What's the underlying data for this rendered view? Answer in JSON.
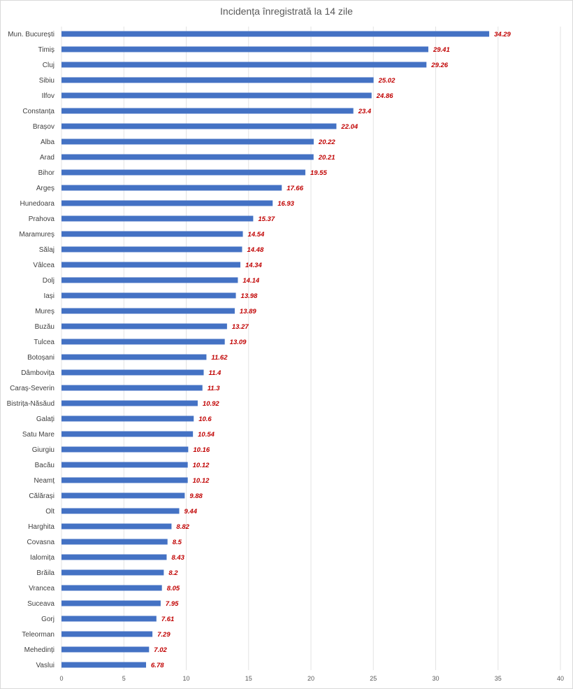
{
  "chart_data": {
    "type": "bar",
    "orientation": "horizontal",
    "title": "Incidența înregistrată la 14 zile",
    "xlim": [
      0,
      40
    ],
    "xticks": [
      0,
      5,
      10,
      15,
      20,
      25,
      30,
      35,
      40
    ],
    "grid": true,
    "bar_color": "#4472c4",
    "label_color": "#c00000",
    "categories": [
      "Mun. București",
      "Timiș",
      "Cluj",
      "Sibiu",
      "Ilfov",
      "Constanța",
      "Brașov",
      "Alba",
      "Arad",
      "Bihor",
      "Argeș",
      "Hunedoara",
      "Prahova",
      "Maramureș",
      "Sălaj",
      "Vâlcea",
      "Dolj",
      "Iași",
      "Mureș",
      "Buzău",
      "Tulcea",
      "Botoșani",
      "Dâmbovița",
      "Caraș-Severin",
      "Bistrița-Năsăud",
      "Galați",
      "Satu Mare",
      "Giurgiu",
      "Bacău",
      "Neamț",
      "Călărași",
      "Olt",
      "Harghita",
      "Covasna",
      "Ialomița",
      "Brăila",
      "Vrancea",
      "Suceava",
      "Gorj",
      "Teleorman",
      "Mehedinți",
      "Vaslui"
    ],
    "values": [
      34.29,
      29.41,
      29.26,
      25.02,
      24.86,
      23.4,
      22.04,
      20.22,
      20.21,
      19.55,
      17.66,
      16.93,
      15.37,
      14.54,
      14.48,
      14.34,
      14.14,
      13.98,
      13.89,
      13.27,
      13.09,
      11.62,
      11.4,
      11.3,
      10.92,
      10.6,
      10.54,
      10.16,
      10.12,
      10.12,
      9.88,
      9.44,
      8.82,
      8.5,
      8.43,
      8.2,
      8.05,
      7.95,
      7.61,
      7.29,
      7.02,
      6.78
    ]
  }
}
